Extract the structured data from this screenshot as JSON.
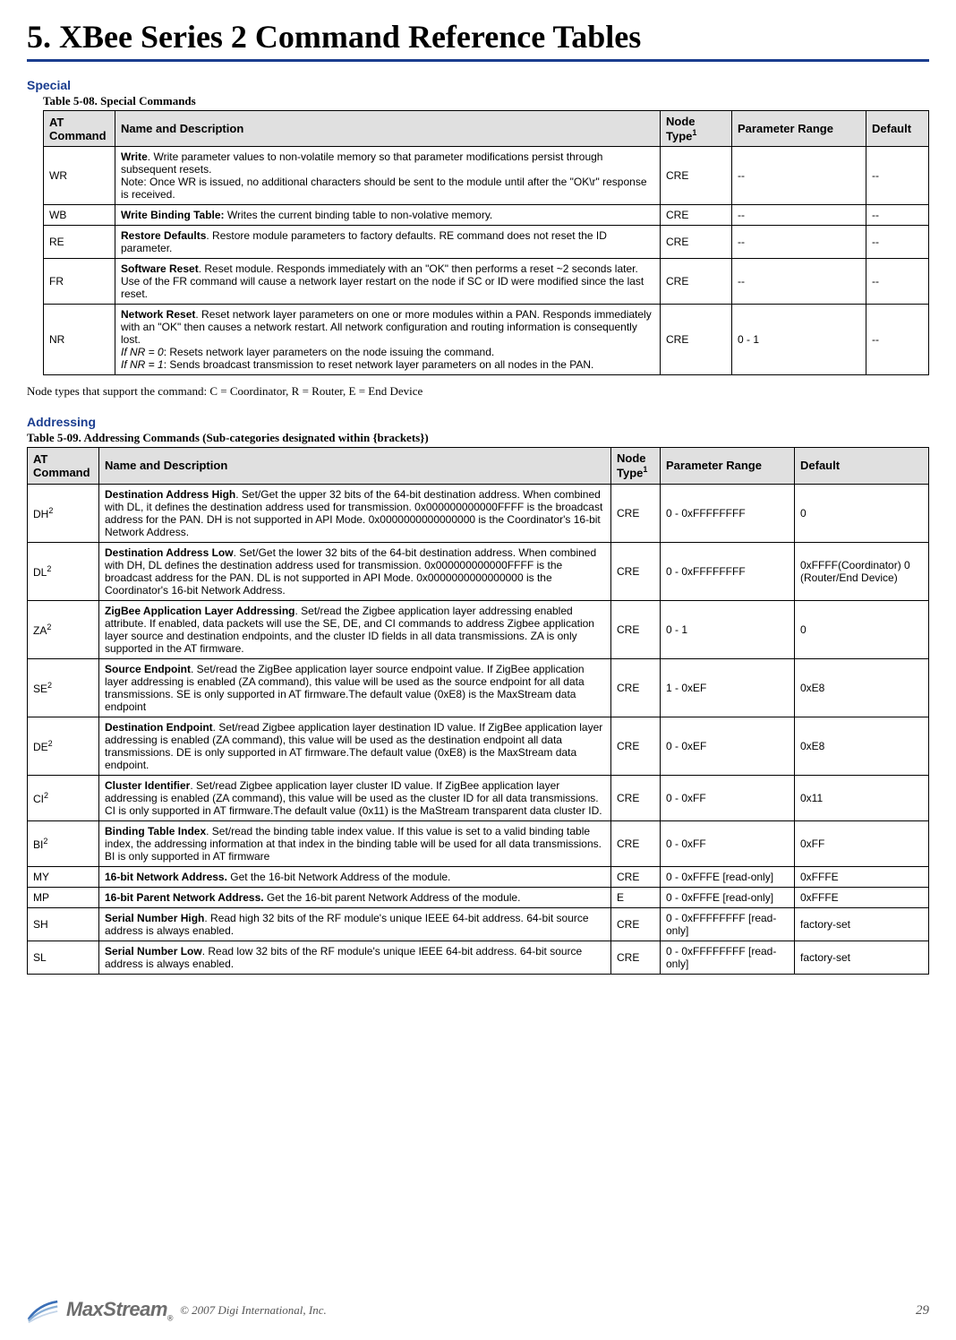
{
  "chapter_title": "5.  XBee Series 2 Command Reference Tables",
  "section1": {
    "label": "Special",
    "caption": "Table 5-08.    Special Commands",
    "headers": [
      "AT Command",
      "Name and Description",
      "Node Type",
      "Parameter Range",
      "Default"
    ],
    "header_sup": "1",
    "rows": [
      {
        "at": "WR",
        "desc_bold": "Write",
        "desc_rest": ". Write parameter values to non-volatile memory so that parameter modifications persist through subsequent resets.",
        "desc_note": "Note: Once WR is issued, no additional characters should be sent to the module until after the \"OK\\r\" response is received.",
        "node": "CRE",
        "range": "--",
        "default": "--"
      },
      {
        "at": "WB",
        "desc_bold": "Write Binding Table:",
        "desc_rest": " Writes the current binding table to non-volative memory.",
        "node": "CRE",
        "range": "--",
        "default": "--"
      },
      {
        "at": "RE",
        "desc_bold": "Restore Defaults",
        "desc_rest": ". Restore module parameters to factory defaults. RE command does not reset the ID parameter.",
        "node": "CRE",
        "range": "--",
        "default": "--"
      },
      {
        "at": "FR",
        "desc_bold": "Software Reset",
        "desc_rest": ". Reset module. Responds immediately with an \"OK\" then performs a reset ~2 seconds later. Use of the FR command will cause a network layer restart on the node if SC or ID were modified since the last reset.",
        "node": "CRE",
        "range": "--",
        "default": "--"
      },
      {
        "at": "NR",
        "desc_bold": "Network Reset",
        "desc_rest": ". Reset network layer parameters on one or more modules within a PAN. Responds immediately with an \"OK\" then causes a network restart. All network configuration and routing information is consequently lost.",
        "desc_if1_i": "If NR = 0",
        "desc_if1_r": ": Resets network layer parameters on the node issuing the command.",
        "desc_if2_i": "If NR = 1",
        "desc_if2_r": ": Sends broadcast transmission to reset network layer parameters on all nodes in the PAN.",
        "node": "CRE",
        "range": "0 - 1",
        "default": "--"
      }
    ],
    "footnote": "Node types that support the command: C = Coordinator, R = Router, E = End Device"
  },
  "section2": {
    "label": "Addressing",
    "caption": "Table 5-09.    Addressing Commands (Sub-categories designated within {brackets})",
    "headers": [
      "AT Command",
      "Name and Description",
      "Node Type",
      "Parameter Range",
      "Default"
    ],
    "header_sup": "1",
    "rows": [
      {
        "at": "DH",
        "sup": "2",
        "b": "Destination Address High",
        "r": ". Set/Get the upper 32 bits of the 64-bit destination address. When combined with DL, it defines the destination address used for transmission. 0x000000000000FFFF is the broadcast address for the PAN. DH is not supported in API Mode. 0x0000000000000000 is the Coordinator's 16-bit Network Address.",
        "node": "CRE",
        "range": "0 - 0xFFFFFFFF",
        "default": "0"
      },
      {
        "at": "DL",
        "sup": "2",
        "b": "Destination Address Low",
        "r": ". Set/Get the lower 32 bits of the 64-bit destination address. When combined with DH, DL defines the destination address used for transmission. 0x000000000000FFFF is the broadcast address for the PAN. DL is not supported in API Mode. 0x0000000000000000 is the Coordinator's 16-bit Network Address.",
        "node": "CRE",
        "range": "0 - 0xFFFFFFFF",
        "default": "0xFFFF(Coordinator) 0 (Router/End Device)"
      },
      {
        "at": "ZA",
        "sup": "2",
        "b": "ZigBee Application Layer Addressing",
        "r": ". Set/read the Zigbee application layer addressing enabled attribute. If enabled, data packets will use the SE, DE, and CI commands to address Zigbee application layer source and destination endpoints, and the cluster ID fields in all data transmissions. ZA is only supported in the AT firmware.",
        "node": "CRE",
        "range": "0 - 1",
        "default": "0"
      },
      {
        "at": "SE",
        "sup": "2",
        "b": "Source Endpoint",
        "r": ". Set/read the ZigBee application layer source endpoint value. If ZigBee application layer addressing is enabled (ZA command), this value will be used as the source endpoint for all data transmissions. SE is only supported in AT firmware.The default value (0xE8) is the MaxStream data endpoint",
        "node": "CRE",
        "range": "1 - 0xEF",
        "default": "0xE8"
      },
      {
        "at": "DE",
        "sup": "2",
        "b": "Destination Endpoint",
        "r": ". Set/read Zigbee application layer destination ID value. If ZigBee application layer addressing is enabled (ZA command), this value will be used as the destination endpoint all data transmissions. DE is only supported in AT firmware.The default value (0xE8) is the MaxStream data endpoint.",
        "node": "CRE",
        "range": "0 - 0xEF",
        "default": "0xE8"
      },
      {
        "at": "CI",
        "sup": "2",
        "b": "Cluster Identifier",
        "r": ". Set/read Zigbee application layer cluster ID value. If ZigBee application layer addressing is enabled (ZA command), this value will be used as the cluster ID for all data transmissions. CI is only supported in AT firmware.The default value (0x11) is the MaStream transparent data cluster ID.",
        "node": "CRE",
        "range": "0 - 0xFF",
        "default": "0x11"
      },
      {
        "at": "BI",
        "sup": "2",
        "b": "Binding Table Index",
        "r": ". Set/read the binding table index value. If this value is set to a valid binding table index, the addressing information at that index in the binding table will be used for all data transmissions. BI is only supported in AT firmware",
        "node": "CRE",
        "range": "0 - 0xFF",
        "default": "0xFF"
      },
      {
        "at": "MY",
        "sup": "",
        "b": "16-bit Network Address.",
        "r": " Get the 16-bit Network Address of the module.",
        "node": "CRE",
        "range": "0 - 0xFFFE [read-only]",
        "default": "0xFFFE"
      },
      {
        "at": "MP",
        "sup": "",
        "b": "16-bit Parent Network Address.",
        "r": " Get the 16-bit parent Network Address of the module.",
        "node": "E",
        "range": "0 - 0xFFFE [read-only]",
        "default": "0xFFFE"
      },
      {
        "at": "SH",
        "sup": "",
        "b": "Serial Number High",
        "r": ". Read high 32 bits of the RF module's unique IEEE 64-bit address. 64-bit source address is always enabled.",
        "node": "CRE",
        "range": "0 - 0xFFFFFFFF [read-only]",
        "default": "factory-set"
      },
      {
        "at": "SL",
        "sup": "",
        "b": "Serial Number Low",
        "r": ". Read low 32 bits of the RF module's unique IEEE 64-bit address. 64-bit source address is always enabled.",
        "node": "CRE",
        "range": "0 - 0xFFFFFFFF [read-only]",
        "default": "factory-set"
      }
    ]
  },
  "footer": {
    "logo_text": "MaxStream",
    "reg": "®",
    "copyright": "© 2007 Digi International, Inc.",
    "page": "29"
  }
}
